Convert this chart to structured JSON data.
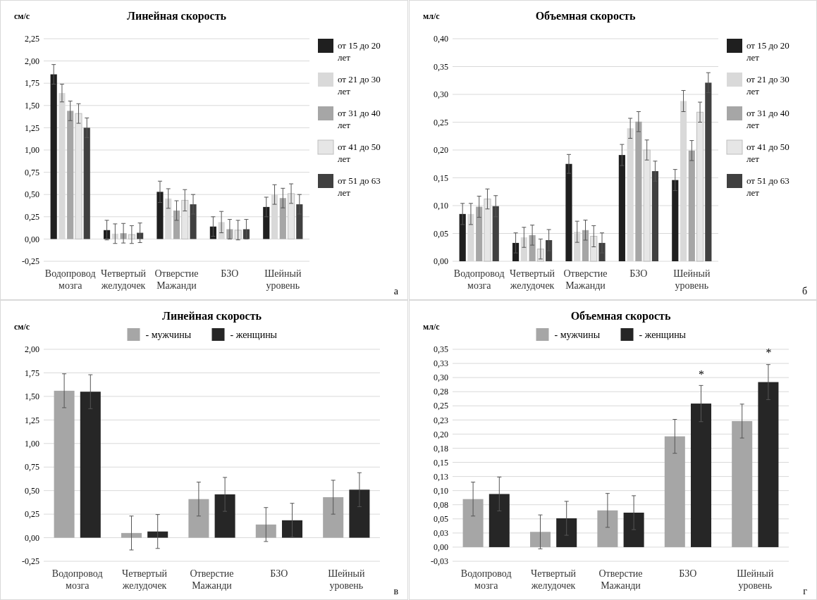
{
  "chart_data": [
    {
      "type": "bar",
      "title": "Линейная скорость",
      "ylabel": "см/с",
      "categories": [
        "Водопровод мозга",
        "Четвертый желудочек",
        "Отверстие Мажанди",
        "БЗО",
        "Шейный уровень"
      ],
      "ylim": [
        -0.25,
        2.25
      ],
      "yticks": [
        {
          "value": -0.25,
          "label": "-0,25"
        },
        {
          "value": 0,
          "label": "0,00"
        },
        {
          "value": 0.25,
          "label": "0,25"
        },
        {
          "value": 0.5,
          "label": "0,50"
        },
        {
          "value": 0.75,
          "label": "0,75"
        },
        {
          "value": 1,
          "label": "1,00"
        },
        {
          "value": 1.25,
          "label": "1,25"
        },
        {
          "value": 1.5,
          "label": "1,50"
        },
        {
          "value": 1.75,
          "label": "1,75"
        },
        {
          "value": 2,
          "label": "2,00"
        },
        {
          "value": 2.25,
          "label": "2,25"
        }
      ],
      "grid": "y",
      "legend": "right",
      "annotations": [
        "а"
      ],
      "series": [
        {
          "name": "от 15 до 20 лет",
          "color": "#1f1f1f",
          "values": [
            1.85,
            0.1,
            0.53,
            0.14,
            0.36
          ],
          "errors": [
            0.11,
            0.11,
            0.12,
            0.11,
            0.11
          ]
        },
        {
          "name": "от 21 до 30 лет",
          "color": "#d9d9d9",
          "values": [
            1.64,
            0.06,
            0.455,
            0.19,
            0.5
          ],
          "errors": [
            0.1,
            0.11,
            0.11,
            0.12,
            0.11
          ]
        },
        {
          "name": "от 31 до 40 лет",
          "color": "#a6a6a6",
          "values": [
            1.44,
            0.065,
            0.32,
            0.11,
            0.46
          ],
          "errors": [
            0.11,
            0.11,
            0.11,
            0.11,
            0.11
          ]
        },
        {
          "name": "от 41 до 50 лет",
          "color": "#e6e6e6",
          "values": [
            1.41,
            0.05,
            0.435,
            0.1,
            0.51
          ],
          "errors": [
            0.11,
            0.1,
            0.12,
            0.11,
            0.11
          ]
        },
        {
          "name": "от 51 до 63 лет",
          "color": "#404040",
          "values": [
            1.25,
            0.07,
            0.39,
            0.11,
            0.39
          ],
          "errors": [
            0.11,
            0.11,
            0.11,
            0.11,
            0.11
          ]
        }
      ]
    },
    {
      "type": "bar",
      "title": "Объемная скорость",
      "ylabel": "мл/с",
      "categories": [
        "Водопровод мозга",
        "Четвертый желудочек",
        "Отверстие Мажанди",
        "БЗО",
        "Шейный уровень"
      ],
      "ylim": [
        0,
        0.4
      ],
      "yticks": [
        {
          "value": 0,
          "label": "0,00"
        },
        {
          "value": 0.05,
          "label": "0,05"
        },
        {
          "value": 0.1,
          "label": "0,10"
        },
        {
          "value": 0.15,
          "label": "0,15"
        },
        {
          "value": 0.2,
          "label": "0,20"
        },
        {
          "value": 0.25,
          "label": "0,25"
        },
        {
          "value": 0.3,
          "label": "0,30"
        },
        {
          "value": 0.35,
          "label": "0,35"
        },
        {
          "value": 0.4,
          "label": "0,40"
        }
      ],
      "grid": "y",
      "legend": "right",
      "annotations": [
        "б"
      ],
      "series": [
        {
          "name": "от 15 до 20 лет",
          "color": "#1f1f1f",
          "values": [
            0.085,
            0.033,
            0.175,
            0.191,
            0.146
          ],
          "errors": [
            0.019,
            0.018,
            0.017,
            0.019,
            0.019
          ]
        },
        {
          "name": "от 21 до 30 лет",
          "color": "#d9d9d9",
          "values": [
            0.085,
            0.043,
            0.053,
            0.239,
            0.288
          ],
          "errors": [
            0.019,
            0.018,
            0.019,
            0.018,
            0.019
          ]
        },
        {
          "name": "от 31 до 40 лет",
          "color": "#a6a6a6",
          "values": [
            0.098,
            0.047,
            0.056,
            0.251,
            0.199
          ],
          "errors": [
            0.019,
            0.018,
            0.018,
            0.018,
            0.018
          ]
        },
        {
          "name": "от 41 до 50 лет",
          "color": "#e6e6e6",
          "values": [
            0.112,
            0.022,
            0.045,
            0.2,
            0.268
          ],
          "errors": [
            0.018,
            0.018,
            0.019,
            0.018,
            0.018
          ]
        },
        {
          "name": "от 51 до 63 лет",
          "color": "#404040",
          "values": [
            0.099,
            0.038,
            0.033,
            0.162,
            0.321
          ],
          "errors": [
            0.019,
            0.019,
            0.018,
            0.018,
            0.018
          ]
        }
      ]
    },
    {
      "type": "bar",
      "title": "Линейная скорость",
      "ylabel": "см/с",
      "categories": [
        "Водопровод мозга",
        "Четвертый желудочек",
        "Отверстие Мажанди",
        "БЗО",
        "Шейный уровень"
      ],
      "ylim": [
        -0.25,
        2
      ],
      "yticks": [
        {
          "value": -0.25,
          "label": "-0,25"
        },
        {
          "value": 0,
          "label": "0,00"
        },
        {
          "value": 0.25,
          "label": "0,25"
        },
        {
          "value": 0.5,
          "label": "0,50"
        },
        {
          "value": 0.75,
          "label": "0,75"
        },
        {
          "value": 1,
          "label": "1,00"
        },
        {
          "value": 1.25,
          "label": "1,25"
        },
        {
          "value": 1.5,
          "label": "1,50"
        },
        {
          "value": 1.75,
          "label": "1,75"
        },
        {
          "value": 2,
          "label": "2,00"
        }
      ],
      "grid": "y",
      "legend": "top",
      "annotations": [
        "в"
      ],
      "series": [
        {
          "name": "- мужчины",
          "color": "#a6a6a6",
          "values": [
            1.56,
            0.05,
            0.41,
            0.14,
            0.43
          ],
          "errors": [
            0.18,
            0.18,
            0.18,
            0.18,
            0.18
          ]
        },
        {
          "name": "- женщины",
          "color": "#262626",
          "values": [
            1.55,
            0.066,
            0.46,
            0.185,
            0.51
          ],
          "errors": [
            0.18,
            0.18,
            0.18,
            0.18,
            0.18
          ]
        }
      ]
    },
    {
      "type": "bar",
      "title": "Объемная скорость",
      "ylabel": "мл/с",
      "categories": [
        "Водопровод мозга",
        "Четвертый желудочек",
        "Отверстие Мажанди",
        "БЗО",
        "Шейный уровень"
      ],
      "ylim": [
        -0.025,
        0.35
      ],
      "yticks": [
        {
          "value": -0.025,
          "label": "-0,03"
        },
        {
          "value": 0,
          "label": "0,00"
        },
        {
          "value": 0.025,
          "label": "0,03"
        },
        {
          "value": 0.05,
          "label": "0,05"
        },
        {
          "value": 0.075,
          "label": "0,08"
        },
        {
          "value": 0.1,
          "label": "0,10"
        },
        {
          "value": 0.125,
          "label": "0,13"
        },
        {
          "value": 0.15,
          "label": "0,15"
        },
        {
          "value": 0.175,
          "label": "0,18"
        },
        {
          "value": 0.2,
          "label": "0,20"
        },
        {
          "value": 0.225,
          "label": "0,23"
        },
        {
          "value": 0.25,
          "label": "0,25"
        },
        {
          "value": 0.275,
          "label": "0,28"
        },
        {
          "value": 0.3,
          "label": "0,30"
        },
        {
          "value": 0.325,
          "label": "0,33"
        },
        {
          "value": 0.35,
          "label": "0,35"
        }
      ],
      "grid": "y",
      "legend": "top",
      "annotations": [
        "г",
        {
          "text": "*",
          "x": "БЗО",
          "y": 0.254
        },
        {
          "text": "*",
          "x": "Шейный уровень",
          "y": 0.292
        }
      ],
      "series": [
        {
          "name": "- мужчины",
          "color": "#a6a6a6",
          "values": [
            0.085,
            0.027,
            0.065,
            0.196,
            0.223
          ],
          "errors": [
            0.03,
            0.03,
            0.03,
            0.03,
            0.03
          ]
        },
        {
          "name": "- женщины",
          "color": "#262626",
          "values": [
            0.094,
            0.051,
            0.061,
            0.254,
            0.292
          ],
          "errors": [
            0.03,
            0.03,
            0.03,
            0.032,
            0.031
          ]
        }
      ]
    }
  ]
}
